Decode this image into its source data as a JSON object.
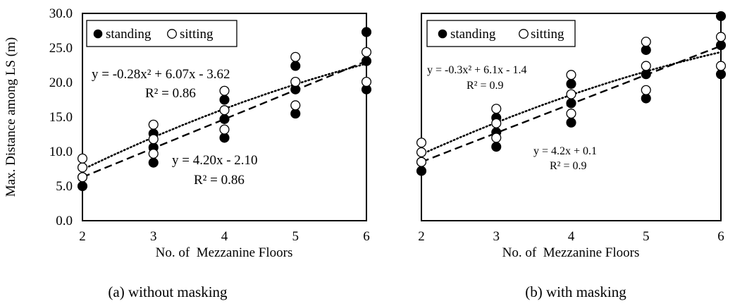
{
  "chart_data": [
    {
      "type": "scatter",
      "caption": "(a) without masking",
      "xlabel": "No. of  Mezzanine Floors",
      "ylabel": "Max. Distance among LS (m)",
      "xlim": [
        2,
        6
      ],
      "ylim": [
        0,
        30
      ],
      "x_ticks": [
        "2",
        "3",
        "4",
        "5",
        "6"
      ],
      "y_ticks": [
        "0.0",
        "5.0",
        "10.0",
        "15.0",
        "20.0",
        "25.0",
        "30.0"
      ],
      "grid": false,
      "legend_position": "top-left",
      "series": [
        {
          "name": "standing",
          "marker": "filled-circle",
          "x": [
            2,
            2,
            3,
            3,
            3,
            4,
            4,
            4,
            5,
            5,
            5,
            6,
            6,
            6
          ],
          "y": [
            5.0,
            6.3,
            8.4,
            10.6,
            12.6,
            12.0,
            14.7,
            17.5,
            15.5,
            19.0,
            22.4,
            19.0,
            23.1,
            27.3
          ]
        },
        {
          "name": "sitting",
          "marker": "open-circle",
          "x": [
            2,
            2,
            2,
            3,
            3,
            3,
            4,
            4,
            4,
            5,
            5,
            5,
            6,
            6
          ],
          "y": [
            6.3,
            7.7,
            9.0,
            9.7,
            11.8,
            13.9,
            13.2,
            16.0,
            18.8,
            16.7,
            20.1,
            23.7,
            20.1,
            24.4
          ]
        }
      ],
      "trendlines": [
        {
          "series": "sitting",
          "style": "dotted",
          "kind": "polynomial",
          "coefficients": [
            -0.28,
            6.07,
            -3.62
          ],
          "equation": "y = -0.28x² + 6.07x - 3.62",
          "r2": "R² = 0.86"
        },
        {
          "series": "standing",
          "style": "dashed",
          "kind": "linear",
          "coefficients": [
            0,
            4.2,
            -2.1
          ],
          "equation": "y = 4.20x - 2.10",
          "r2": "R² = 0.86"
        }
      ]
    },
    {
      "type": "scatter",
      "caption": "(b) with masking",
      "xlabel": "No. of  Mezzanine Floors",
      "ylabel": "",
      "xlim": [
        2,
        6
      ],
      "ylim": [
        0,
        30
      ],
      "x_ticks": [
        "2",
        "3",
        "4",
        "5",
        "6"
      ],
      "y_ticks": [],
      "grid": false,
      "legend_position": "top-left",
      "series": [
        {
          "name": "standing",
          "marker": "filled-circle",
          "x": [
            2,
            2,
            3,
            3,
            3,
            4,
            4,
            4,
            5,
            5,
            5,
            6,
            6,
            6
          ],
          "y": [
            7.2,
            8.5,
            10.7,
            12.8,
            14.9,
            14.2,
            17.0,
            19.8,
            17.7,
            21.2,
            24.7,
            21.2,
            25.4,
            29.6
          ]
        },
        {
          "name": "sitting",
          "marker": "open-circle",
          "x": [
            2,
            2,
            2,
            3,
            3,
            3,
            4,
            4,
            4,
            5,
            5,
            5,
            6,
            6
          ],
          "y": [
            8.5,
            9.9,
            11.3,
            12.0,
            14.1,
            16.2,
            15.5,
            18.3,
            21.1,
            18.9,
            22.4,
            25.9,
            22.4,
            26.6
          ]
        }
      ],
      "trendlines": [
        {
          "series": "sitting",
          "style": "dotted",
          "kind": "polynomial",
          "coefficients": [
            -0.3,
            6.1,
            -1.4
          ],
          "equation": "y = -0.3x² + 6.1x - 1.4",
          "r2": "R² = 0.9"
        },
        {
          "series": "standing",
          "style": "dashed",
          "kind": "linear",
          "coefficients": [
            0,
            4.2,
            0.1
          ],
          "equation": "y = 4.2x + 0.1",
          "r2": "R² = 0.9"
        }
      ]
    }
  ]
}
